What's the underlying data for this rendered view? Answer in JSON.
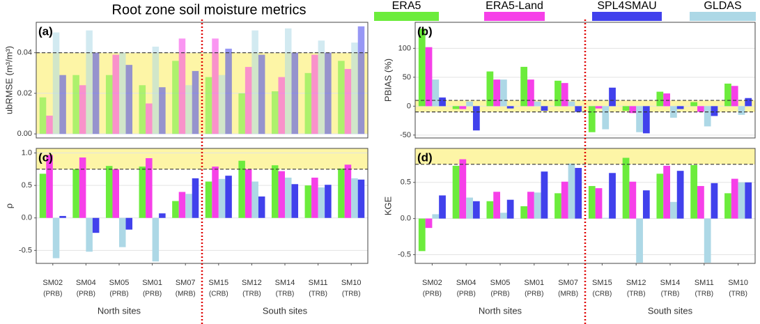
{
  "title": "Root zone soil moisture metrics",
  "legend_order": [
    0,
    1,
    3,
    2
  ],
  "chart_data": [
    {
      "type": "bar",
      "label": "(a)",
      "ylabel": "ubRMSE (m³/m³)",
      "ylim": [
        -0.002,
        0.055
      ],
      "yticks": [
        {
          "value": 0,
          "label": "0.00"
        },
        {
          "value": 0.02,
          "label": "0.02"
        },
        {
          "value": 0.04,
          "label": "0.04"
        }
      ],
      "band": [
        0,
        0.04
      ],
      "hline": [
        0.04
      ],
      "bar_alpha": 0.55,
      "grid": true,
      "series": [
        {
          "name": "ERA5",
          "color": "#6cec3c",
          "values": [
            0.018,
            0.029,
            0.029,
            0.024,
            0.036,
            0.028,
            0.02,
            0.021,
            0.03,
            0.036
          ]
        },
        {
          "name": "ERA5-Land",
          "color": "#f640e8",
          "values": [
            0.009,
            0.024,
            0.039,
            0.015,
            0.047,
            0.047,
            0.033,
            0.028,
            0.039,
            0.032
          ]
        },
        {
          "name": "GLDAS",
          "color": "#add8e6",
          "values": [
            0.05,
            0.051,
            0.04,
            0.043,
            0.024,
            0.029,
            0.051,
            0.052,
            0.046,
            0.045
          ]
        },
        {
          "name": "SPL4SMAU",
          "color": "#4141ec",
          "values": [
            0.029,
            0.04,
            0.034,
            0.023,
            0.031,
            0.042,
            0.039,
            0.04,
            0.04,
            0.053
          ]
        }
      ]
    },
    {
      "type": "bar",
      "label": "(b)",
      "ylabel": "PBIAS (%)",
      "ylim": [
        -55,
        145
      ],
      "yticks": [
        -50,
        0,
        50,
        100
      ],
      "band": [
        -10,
        10
      ],
      "hline": [
        -10,
        10
      ],
      "grid": true,
      "series": [
        {
          "values": [
            134,
            -5,
            60,
            68,
            44,
            -45,
            -8,
            25,
            7,
            39
          ]
        },
        {
          "values": [
            102,
            -5,
            46,
            46,
            40,
            -4,
            -12,
            22,
            -10,
            35
          ]
        },
        {
          "values": [
            46,
            8,
            46,
            8,
            8,
            -40,
            -45,
            -20,
            -35,
            -15
          ]
        },
        {
          "values": [
            15,
            -42,
            -4,
            -8,
            -10,
            32,
            -47,
            -5,
            -17,
            14
          ]
        }
      ]
    },
    {
      "type": "bar",
      "label": "(c)",
      "ylabel": "ρ",
      "ylim": [
        -0.7,
        1.07
      ],
      "yticks": [
        {
          "value": -0.5,
          "label": "-0.5"
        },
        {
          "value": 0,
          "label": "0.0"
        },
        {
          "value": 0.5,
          "label": "0.5"
        },
        {
          "value": 1,
          "label": "1.0"
        }
      ],
      "band": [
        0.75,
        1.07
      ],
      "hline": [
        0.75
      ],
      "grid": true,
      "categories": [
        "SM02",
        "SM04",
        "SM05",
        "SM01",
        "SM07",
        "SM15",
        "SM12",
        "SM14",
        "SM11",
        "SM10"
      ],
      "basins": [
        "(PRB)",
        "(PRB)",
        "(PRB)",
        "(PRB)",
        "(MRB)",
        "(CRB)",
        "(TRB)",
        "(TRB)",
        "(TRB)",
        "(TRB)"
      ],
      "groups": [
        "North sites",
        "South sites"
      ],
      "series": [
        {
          "values": [
            0.68,
            0.75,
            0.8,
            0.79,
            0.26,
            0.56,
            0.88,
            0.81,
            0.5,
            0.76
          ]
        },
        {
          "values": [
            0.97,
            0.93,
            0.75,
            0.92,
            0.4,
            0.79,
            0.75,
            0.72,
            0.62,
            0.82
          ]
        },
        {
          "values": [
            -0.62,
            -0.52,
            -0.45,
            -0.67,
            0.37,
            0.6,
            0.56,
            0.62,
            0.47,
            0.61
          ]
        },
        {
          "values": [
            0.03,
            -0.23,
            -0.18,
            0.07,
            0.61,
            0.65,
            0.33,
            0.52,
            0.51,
            0.59
          ]
        }
      ]
    },
    {
      "type": "bar",
      "label": "(d)",
      "ylabel": "KGE",
      "ylim": [
        -0.62,
        0.97
      ],
      "yticks": [
        -0.5,
        {
          "value": 0,
          "label": "0.0"
        },
        0.5
      ],
      "band": [
        0.75,
        0.97
      ],
      "hline": [
        0.75
      ],
      "grid": true,
      "categories": [
        "SM02",
        "SM04",
        "SM05",
        "SM01",
        "SM07",
        "SM15",
        "SM12",
        "SM14",
        "SM11",
        "SM10"
      ],
      "basins": [
        "(PRB)",
        "(PRB)",
        "(PRB)",
        "(PRB)",
        "(MRB)",
        "(CRB)",
        "(TRB)",
        "(TRB)",
        "(TRB)",
        "(TRB)"
      ],
      "groups": [
        "North sites",
        "South sites"
      ],
      "series": [
        {
          "values": [
            -0.45,
            0.73,
            0.24,
            0.17,
            0.35,
            0.45,
            0.84,
            0.62,
            0.74,
            0.35
          ]
        },
        {
          "values": [
            -0.13,
            0.82,
            0.37,
            0.37,
            0.51,
            0.42,
            0.51,
            0.73,
            0.45,
            0.55
          ]
        },
        {
          "values": [
            0.06,
            0.29,
            0.08,
            0.36,
            0.76,
            0.01,
            -0.61,
            0.23,
            -0.61,
            0.5
          ]
        },
        {
          "values": [
            0.32,
            0.24,
            0.26,
            0.65,
            0.7,
            0.63,
            0.39,
            0.66,
            0.49,
            0.5
          ]
        }
      ]
    }
  ]
}
